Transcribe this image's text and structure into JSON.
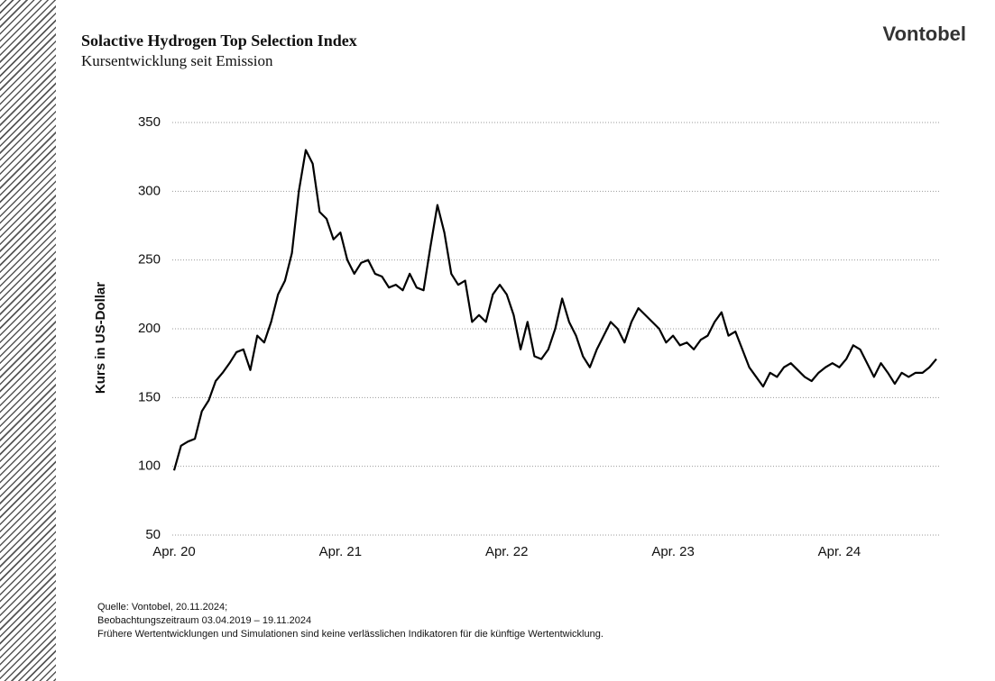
{
  "brand": "Vontobel",
  "chart_data": {
    "type": "line",
    "title": "Solactive Hydrogen Top Selection Index",
    "subtitle": "Kursentwicklung seit Emission",
    "y_label": "Kurs in US-Dollar",
    "categories": [
      "Apr. 20",
      null,
      null,
      null,
      null,
      null,
      null,
      null,
      null,
      null,
      null,
      null,
      null,
      null,
      null,
      null,
      null,
      null,
      null,
      null,
      null,
      null,
      null,
      null,
      "Apr. 21",
      null,
      null,
      null,
      null,
      null,
      null,
      null,
      null,
      null,
      null,
      null,
      null,
      null,
      null,
      null,
      null,
      null,
      null,
      null,
      null,
      null,
      null,
      null,
      "Apr. 22",
      null,
      null,
      null,
      null,
      null,
      null,
      null,
      null,
      null,
      null,
      null,
      null,
      null,
      null,
      null,
      null,
      null,
      null,
      null,
      null,
      null,
      null,
      null,
      "Apr. 23",
      null,
      null,
      null,
      null,
      null,
      null,
      null,
      null,
      null,
      null,
      null,
      null,
      null,
      null,
      null,
      null,
      null,
      null,
      null,
      null,
      null,
      null,
      null,
      "Apr. 24",
      null,
      null,
      null,
      null,
      null,
      null,
      null,
      null,
      null,
      null,
      null,
      null,
      null,
      null
    ],
    "series": [
      {
        "name": "Solactive Hydrogen Top Selection Index",
        "color": "#000000",
        "values": [
          97,
          115,
          118,
          120,
          140,
          148,
          162,
          168,
          175,
          183,
          185,
          170,
          195,
          190,
          205,
          225,
          235,
          255,
          300,
          330,
          320,
          285,
          280,
          265,
          270,
          250,
          240,
          248,
          250,
          240,
          238,
          230,
          232,
          228,
          240,
          230,
          228,
          260,
          290,
          270,
          240,
          232,
          235,
          205,
          210,
          205,
          225,
          232,
          225,
          210,
          185,
          205,
          180,
          178,
          185,
          200,
          222,
          205,
          195,
          180,
          172,
          185,
          195,
          205,
          200,
          190,
          205,
          215,
          210,
          205,
          200,
          190,
          195,
          188,
          190,
          185,
          192,
          195,
          205,
          212,
          195,
          198,
          185,
          172,
          165,
          158,
          168,
          165,
          172,
          175,
          170,
          165,
          162,
          168,
          172,
          175,
          172,
          178,
          188,
          185,
          175,
          165,
          175,
          168,
          160,
          168,
          165,
          168,
          168,
          172,
          178
        ]
      }
    ],
    "ylim": [
      50,
      350
    ],
    "yticks": [
      50,
      100,
      150,
      200,
      250,
      300,
      350
    ],
    "grid": true
  },
  "footer": [
    "Quelle: Vontobel, 20.11.2024;",
    "Beobachtungszeitraum 03.04.2019 – 19.11.2024",
    "Frühere Wertentwicklungen und Simulationen sind keine verlässlichen Indikatoren für die künftige Wertentwicklung."
  ]
}
